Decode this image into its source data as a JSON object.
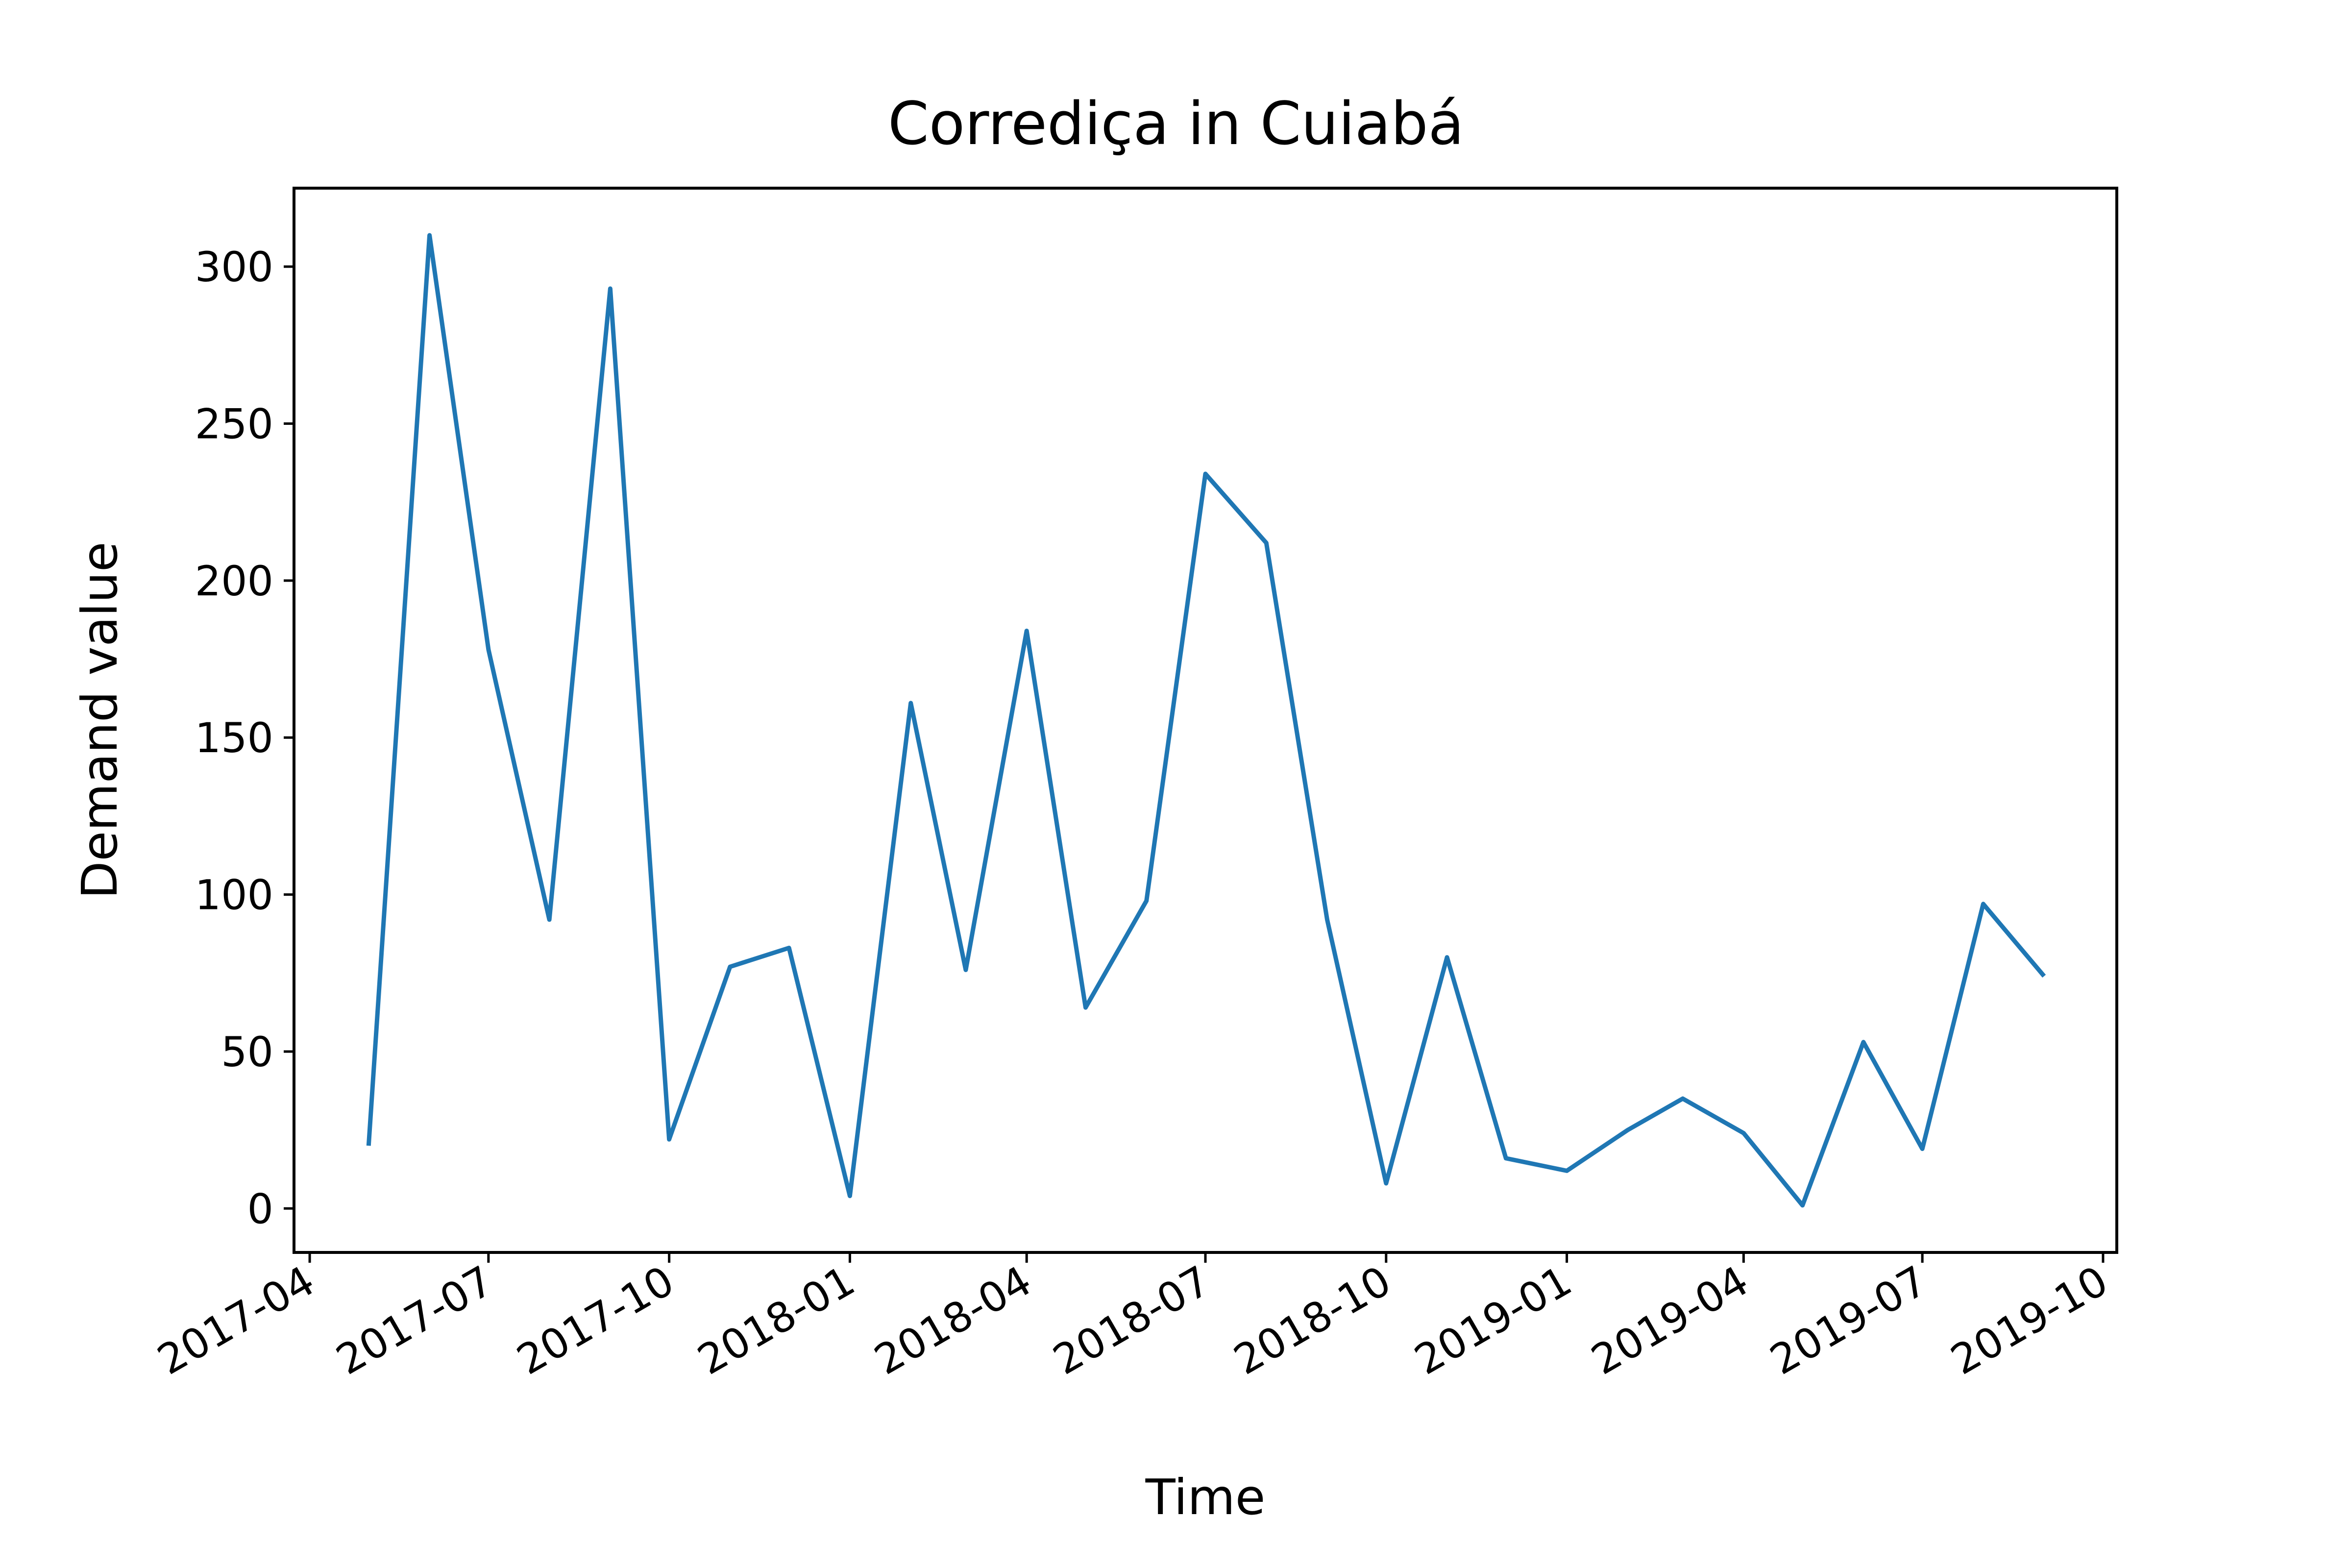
{
  "chart_data": {
    "type": "line",
    "title": "Corrediça in Cuiabá",
    "xlabel": "Time",
    "ylabel": "Demand value",
    "x_ticks": [
      "2017-04",
      "2017-07",
      "2017-10",
      "2018-01",
      "2018-04",
      "2018-07",
      "2018-10",
      "2019-01",
      "2019-04",
      "2019-07",
      "2019-10"
    ],
    "y_ticks": [
      0,
      50,
      100,
      150,
      200,
      250,
      300
    ],
    "xlim": [
      "2017-03-24",
      "2019-10-08"
    ],
    "ylim": [
      -14,
      325
    ],
    "grid": false,
    "series": [
      {
        "color": "#1f77b4",
        "x": [
          "2017-05-01",
          "2017-06-01",
          "2017-07-01",
          "2017-08-01",
          "2017-09-01",
          "2017-10-01",
          "2017-11-01",
          "2017-12-01",
          "2018-01-01",
          "2018-02-01",
          "2018-03-01",
          "2018-04-01",
          "2018-05-01",
          "2018-06-01",
          "2018-07-01",
          "2018-08-01",
          "2018-09-01",
          "2018-10-01",
          "2018-11-01",
          "2018-12-01",
          "2019-01-01",
          "2019-02-01",
          "2019-03-01",
          "2019-04-01",
          "2019-05-01",
          "2019-06-01",
          "2019-07-01",
          "2019-08-01",
          "2019-09-01"
        ],
        "values": [
          20,
          310,
          178,
          92,
          293,
          22,
          77,
          83,
          4,
          161,
          76,
          184,
          64,
          98,
          234,
          212,
          92,
          8,
          80,
          16,
          12,
          25,
          35,
          24,
          1,
          53,
          19,
          97,
          74
        ]
      }
    ]
  }
}
